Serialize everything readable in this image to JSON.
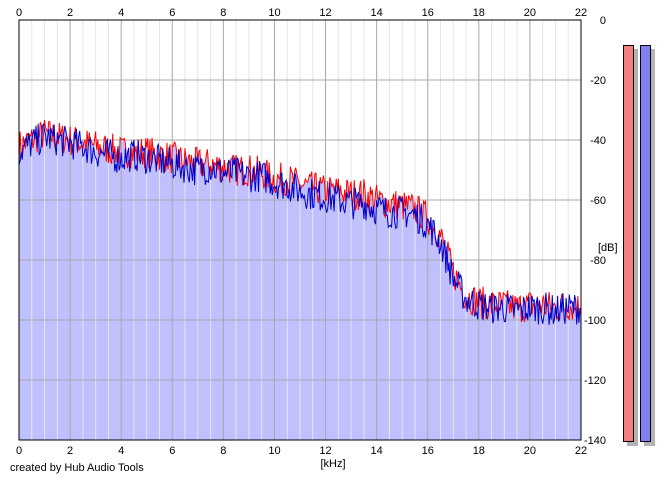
{
  "chart_data": {
    "type": "line",
    "xlabel": "[kHz]",
    "ylabel": "[dB]",
    "xlim": [
      0,
      22
    ],
    "ylim": [
      -140,
      0
    ],
    "x_ticks": [
      "0",
      "2",
      "4",
      "6",
      "8",
      "10",
      "12",
      "14",
      "16",
      "18",
      "20",
      "22"
    ],
    "y_ticks": [
      "0",
      "-20",
      "-40",
      "-60",
      "-80",
      "-100",
      "-120",
      "-140"
    ],
    "grid": true,
    "fill_under": "#c0c0ff",
    "series": [
      {
        "color": "#ff0000",
        "x": [
          0,
          0.5,
          1,
          1.5,
          2,
          2.5,
          3,
          3.5,
          4,
          4.5,
          5,
          5.5,
          6,
          6.5,
          7,
          7.5,
          8,
          8.5,
          9,
          9.5,
          10,
          10.5,
          11,
          11.5,
          12,
          12.5,
          13,
          13.5,
          14,
          14.5,
          15,
          15.5,
          16,
          16.5,
          17,
          17.5,
          18,
          18.5,
          19,
          19.5,
          20,
          20.5,
          21,
          21.5,
          22
        ],
        "values": [
          -42,
          -40,
          -38,
          -39,
          -40,
          -41,
          -42,
          -43,
          -44,
          -44,
          -44,
          -45,
          -46,
          -47,
          -48,
          -48,
          -49,
          -50,
          -50,
          -51,
          -53,
          -53,
          -55,
          -56,
          -57,
          -57,
          -58,
          -58,
          -60,
          -61,
          -62,
          -63,
          -66,
          -72,
          -84,
          -92,
          -94,
          -95,
          -95,
          -96,
          -95,
          -95,
          -96,
          -95,
          -96
        ]
      },
      {
        "color": "#0000cc",
        "x": [
          0,
          0.5,
          1,
          1.5,
          2,
          2.5,
          3,
          3.5,
          4,
          4.5,
          5,
          5.5,
          6,
          6.5,
          7,
          7.5,
          8,
          8.5,
          9,
          9.5,
          10,
          10.5,
          11,
          11.5,
          12,
          12.5,
          13,
          13.5,
          14,
          14.5,
          15,
          15.5,
          16,
          16.5,
          17,
          17.5,
          18,
          18.5,
          19,
          19.5,
          20,
          20.5,
          21,
          21.5,
          22
        ],
        "values": [
          -44,
          -41,
          -39,
          -40,
          -41,
          -42,
          -44,
          -45,
          -46,
          -45,
          -46,
          -47,
          -48,
          -49,
          -50,
          -49,
          -51,
          -51,
          -52,
          -52,
          -54,
          -55,
          -57,
          -58,
          -59,
          -60,
          -61,
          -61,
          -63,
          -64,
          -64,
          -65,
          -68,
          -74,
          -86,
          -93,
          -95,
          -96,
          -96,
          -97,
          -96,
          -96,
          -97,
          -96,
          -96
        ]
      }
    ]
  },
  "footer": {
    "credit": "created by Hub Audio Tools"
  },
  "level_meters": [
    {
      "channel": "left",
      "color": "#f08080"
    },
    {
      "channel": "right",
      "color": "#8080f0"
    }
  ]
}
